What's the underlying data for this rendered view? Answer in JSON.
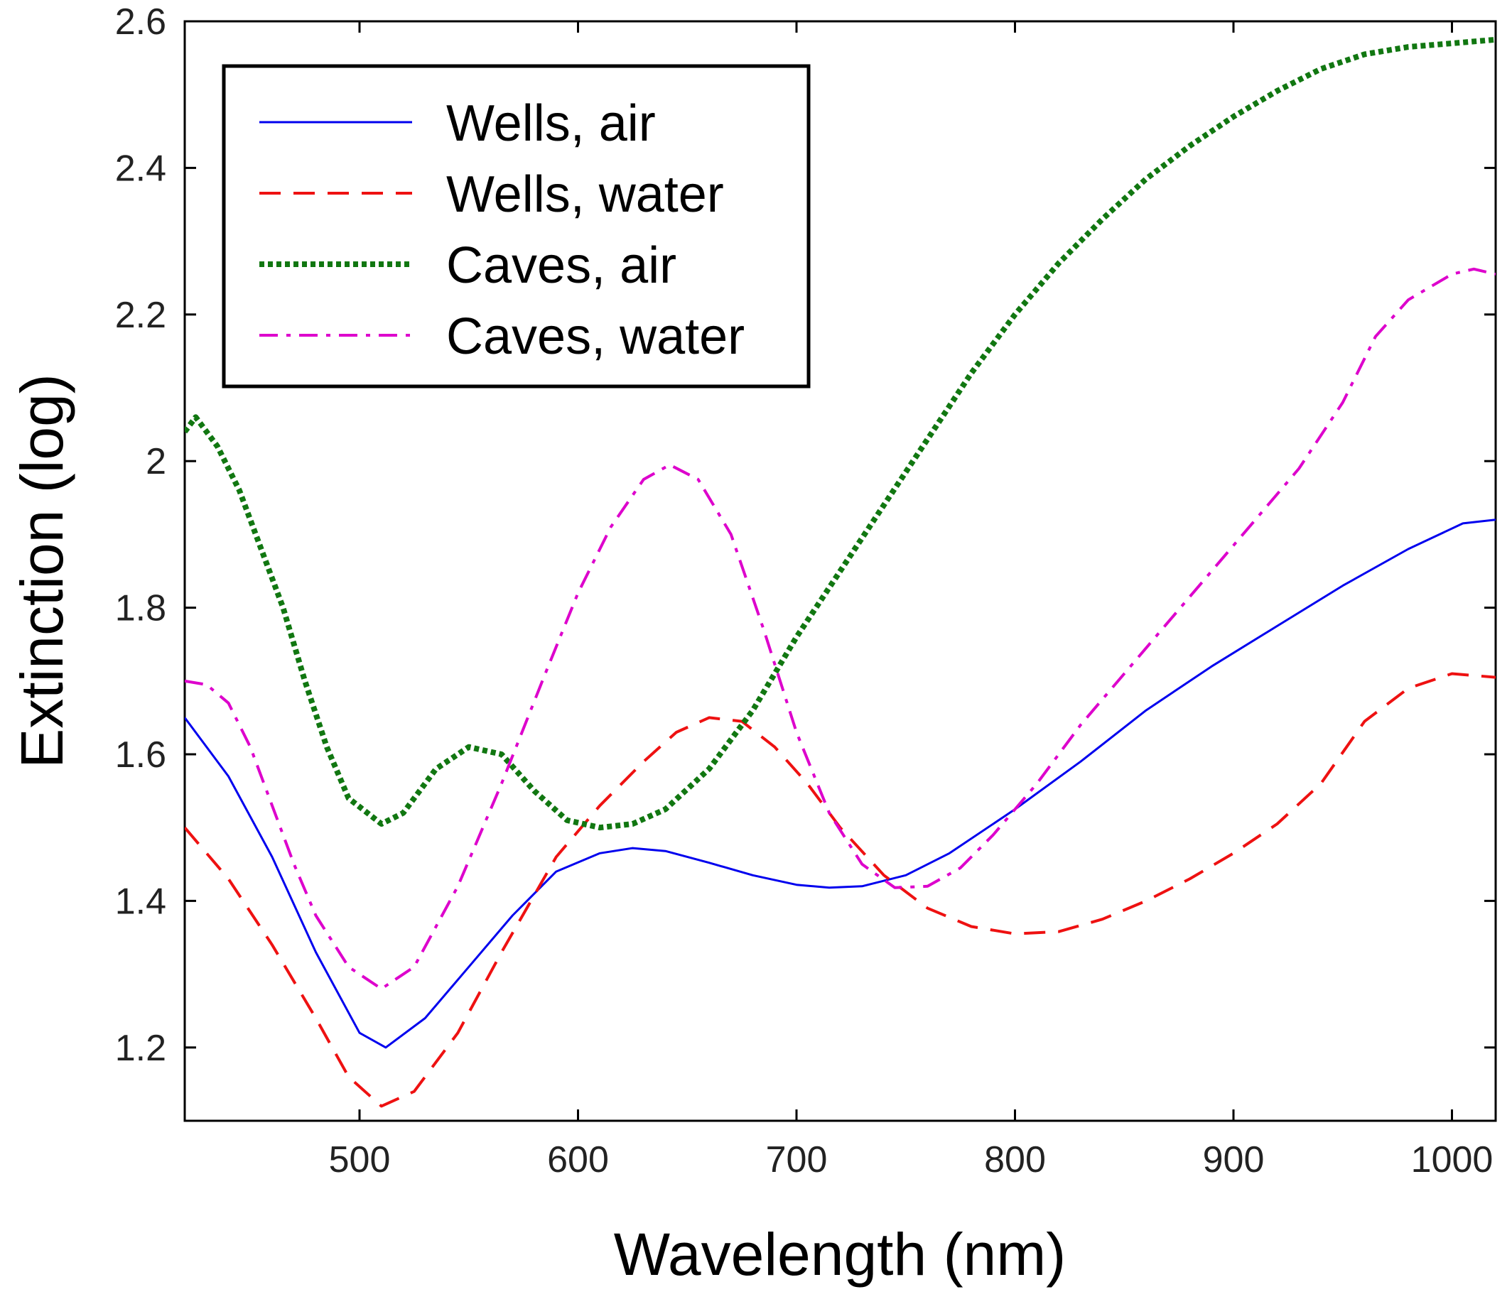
{
  "chart_data": {
    "type": "line",
    "title": "",
    "xlabel": "Wavelength  (nm)",
    "ylabel": "Extinction  (log)",
    "xlim": [
      420,
      1020
    ],
    "ylim": [
      1.1,
      2.6
    ],
    "xticks": [
      500,
      600,
      700,
      800,
      900,
      1000
    ],
    "xtick_labels": [
      "500",
      "600",
      "700",
      "800",
      "900",
      "1000"
    ],
    "yticks": [
      1.2,
      1.4,
      1.6,
      1.8,
      2.0,
      2.2,
      2.4,
      2.6
    ],
    "ytick_labels": [
      "1.2",
      "1.4",
      "1.6",
      "1.8",
      "2",
      "2.2",
      "2.4",
      "2.6"
    ],
    "grid": false,
    "legend_position": "top-left",
    "series": [
      {
        "name": "Wells, air",
        "color": "#0000ee",
        "dash": "solid",
        "points": [
          [
            420,
            1.65
          ],
          [
            440,
            1.57
          ],
          [
            460,
            1.46
          ],
          [
            480,
            1.33
          ],
          [
            500,
            1.22
          ],
          [
            512,
            1.2
          ],
          [
            530,
            1.24
          ],
          [
            550,
            1.31
          ],
          [
            570,
            1.38
          ],
          [
            590,
            1.44
          ],
          [
            610,
            1.465
          ],
          [
            625,
            1.472
          ],
          [
            640,
            1.468
          ],
          [
            660,
            1.452
          ],
          [
            680,
            1.435
          ],
          [
            700,
            1.422
          ],
          [
            715,
            1.418
          ],
          [
            730,
            1.42
          ],
          [
            750,
            1.435
          ],
          [
            770,
            1.465
          ],
          [
            800,
            1.525
          ],
          [
            830,
            1.59
          ],
          [
            860,
            1.66
          ],
          [
            890,
            1.72
          ],
          [
            920,
            1.775
          ],
          [
            950,
            1.83
          ],
          [
            980,
            1.88
          ],
          [
            1005,
            1.915
          ],
          [
            1020,
            1.92
          ]
        ]
      },
      {
        "name": "Wells, water",
        "color": "#ee1111",
        "dash": "dashed",
        "points": [
          [
            420,
            1.5
          ],
          [
            440,
            1.43
          ],
          [
            460,
            1.34
          ],
          [
            480,
            1.24
          ],
          [
            495,
            1.16
          ],
          [
            510,
            1.12
          ],
          [
            525,
            1.14
          ],
          [
            545,
            1.22
          ],
          [
            565,
            1.33
          ],
          [
            590,
            1.46
          ],
          [
            610,
            1.53
          ],
          [
            630,
            1.59
          ],
          [
            645,
            1.63
          ],
          [
            660,
            1.65
          ],
          [
            675,
            1.645
          ],
          [
            690,
            1.61
          ],
          [
            705,
            1.56
          ],
          [
            720,
            1.5
          ],
          [
            740,
            1.435
          ],
          [
            760,
            1.39
          ],
          [
            780,
            1.365
          ],
          [
            800,
            1.355
          ],
          [
            820,
            1.358
          ],
          [
            840,
            1.375
          ],
          [
            860,
            1.4
          ],
          [
            880,
            1.43
          ],
          [
            900,
            1.465
          ],
          [
            920,
            1.505
          ],
          [
            940,
            1.56
          ],
          [
            960,
            1.645
          ],
          [
            980,
            1.69
          ],
          [
            1000,
            1.71
          ],
          [
            1020,
            1.705
          ]
        ]
      },
      {
        "name": "Caves, air",
        "color": "#117711",
        "dash": "dotted",
        "points": [
          [
            420,
            2.04
          ],
          [
            425,
            2.06
          ],
          [
            435,
            2.02
          ],
          [
            445,
            1.96
          ],
          [
            455,
            1.88
          ],
          [
            465,
            1.8
          ],
          [
            475,
            1.7
          ],
          [
            485,
            1.61
          ],
          [
            495,
            1.54
          ],
          [
            510,
            1.505
          ],
          [
            520,
            1.52
          ],
          [
            535,
            1.58
          ],
          [
            550,
            1.61
          ],
          [
            565,
            1.6
          ],
          [
            580,
            1.55
          ],
          [
            595,
            1.51
          ],
          [
            610,
            1.5
          ],
          [
            625,
            1.505
          ],
          [
            640,
            1.525
          ],
          [
            660,
            1.58
          ],
          [
            680,
            1.66
          ],
          [
            700,
            1.76
          ],
          [
            720,
            1.85
          ],
          [
            740,
            1.94
          ],
          [
            760,
            2.03
          ],
          [
            780,
            2.12
          ],
          [
            800,
            2.2
          ],
          [
            820,
            2.27
          ],
          [
            840,
            2.33
          ],
          [
            860,
            2.385
          ],
          [
            880,
            2.43
          ],
          [
            900,
            2.47
          ],
          [
            920,
            2.505
          ],
          [
            940,
            2.535
          ],
          [
            960,
            2.555
          ],
          [
            980,
            2.565
          ],
          [
            1000,
            2.57
          ],
          [
            1020,
            2.575
          ]
        ]
      },
      {
        "name": "Caves, water",
        "color": "#dd00cc",
        "dash": "dashdot",
        "points": [
          [
            420,
            1.7
          ],
          [
            430,
            1.695
          ],
          [
            440,
            1.67
          ],
          [
            450,
            1.61
          ],
          [
            460,
            1.53
          ],
          [
            470,
            1.45
          ],
          [
            480,
            1.38
          ],
          [
            495,
            1.31
          ],
          [
            510,
            1.28
          ],
          [
            525,
            1.31
          ],
          [
            545,
            1.42
          ],
          [
            565,
            1.56
          ],
          [
            585,
            1.71
          ],
          [
            600,
            1.82
          ],
          [
            615,
            1.91
          ],
          [
            630,
            1.975
          ],
          [
            642,
            1.995
          ],
          [
            655,
            1.975
          ],
          [
            670,
            1.9
          ],
          [
            685,
            1.77
          ],
          [
            700,
            1.63
          ],
          [
            715,
            1.52
          ],
          [
            730,
            1.45
          ],
          [
            745,
            1.418
          ],
          [
            760,
            1.42
          ],
          [
            775,
            1.445
          ],
          [
            790,
            1.49
          ],
          [
            810,
            1.56
          ],
          [
            830,
            1.64
          ],
          [
            850,
            1.71
          ],
          [
            870,
            1.78
          ],
          [
            890,
            1.85
          ],
          [
            910,
            1.92
          ],
          [
            930,
            1.99
          ],
          [
            950,
            2.08
          ],
          [
            965,
            2.17
          ],
          [
            980,
            2.22
          ],
          [
            1000,
            2.255
          ],
          [
            1010,
            2.262
          ],
          [
            1020,
            2.255
          ]
        ]
      }
    ]
  }
}
